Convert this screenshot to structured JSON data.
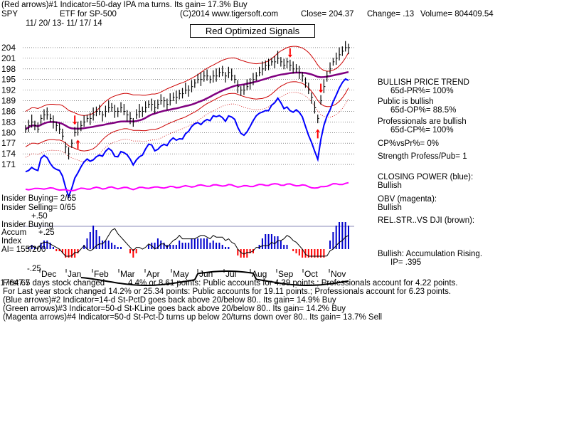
{
  "header": {
    "line1": "(Red arrows)#1 Indicator=50-day IPA ma turns. Its gain= 17.3% Buy",
    "ticker": "SPY",
    "desc": "ETF for SP-500",
    "copyright": "(C)2014 www.tigersoft.com",
    "close": "Close= 204.37",
    "change": "Change= .13",
    "volume": "Volume= 804409.54",
    "dates": "11/ 20/ 13- 11/ 17/ 14"
  },
  "title_box": "Red Optimized Signals",
  "right_panel": {
    "trend": "BULLISH PRICE TREND",
    "pr": "65d-PR%= 100%",
    "public": "Public is bullish",
    "op": "65d-OP%= 88.5%",
    "pros": "Professionals are bullish",
    "cp": "65d-CP%= 100%",
    "cpvspr": "CP%vsPr%= 0%",
    "strength": "Strength Profess/Pub= 1",
    "closing_power": "CLOSING POWER (blue):",
    "cp_bull": "Bullish",
    "obv": "OBV (magenta):",
    "obv_bull": "Bullish",
    "relstr": "REL.STR..VS DJI (brown):",
    "accum": "Bullish: Accumulation Rising.",
    "ip": "IP= .395"
  },
  "left_panel": {
    "insider_buying": "Insider Buying= 2/65",
    "insider_selling": "Insider Selling= 0/65",
    "plus50": "+.50",
    "insider_buying2": "Insider Buying",
    "accum": "Accum",
    "plus25": "+.25",
    "index": "Index",
    "ai": "AI= 155/200",
    "minus25": "-.25"
  },
  "footer": {
    "line1a": "First 65 days stock changed",
    "line1b": "17647.7",
    "line1c": "4.4% or  8.61 points:  Public accounts for  4.39 points.;  Professionals account for  4.22 points.",
    "line2": "For Last year stock changed  14.2% or  25.34 points:  Public accounts for  19.11 points.;  Professionals account for  6.23 points.",
    "line3": "(Blue arrows)#2 Indicator=14-d St-PctD goes back above 20/below 80.. Its gain= 14.9% Buy",
    "line4": "(Green arrows)#3 Indicator=50-d St-KLine goes back above 20/below 80.. Its gain= 14.2% Buy",
    "line5": "(Magenta arrows)#4 Indicator=50-d St-Pct-D turns up below 20/turns down over 80.. Its gain= 13.7% Sell"
  },
  "chart_data": {
    "type": "line",
    "y_ticks": [
      204,
      201,
      198,
      195,
      192,
      189,
      186,
      183,
      180,
      177,
      174,
      171
    ],
    "ylim": [
      168,
      206
    ],
    "x_month_labels": [
      "Dec",
      "Jan",
      "Feb",
      "Mar",
      "Apr",
      "May",
      "Jun",
      "Jul",
      "Aug",
      "Sep",
      "Oct",
      "Nov"
    ],
    "colors": {
      "price": "#000000",
      "bands": "#cc0000",
      "ma": "#800080",
      "closing_power": "#0000ff",
      "obv": "#ff00ff",
      "accum": "#0000cc",
      "arrow": "#ff0000"
    },
    "price": [
      181,
      182,
      183,
      182,
      181,
      184,
      185,
      185,
      184,
      183,
      182,
      181,
      179,
      176,
      174,
      177,
      180,
      181,
      182,
      183,
      184,
      184,
      185,
      186,
      186,
      185,
      186,
      187,
      187,
      186,
      186,
      187,
      186,
      185,
      184,
      183,
      185,
      186,
      186,
      187,
      188,
      188,
      187,
      188,
      189,
      189,
      188,
      189,
      190,
      190,
      191,
      191,
      192,
      192,
      193,
      194,
      195,
      195,
      196,
      196,
      195,
      196,
      196,
      197,
      197,
      196,
      197,
      196,
      195,
      193,
      192,
      192,
      193,
      194,
      195,
      196,
      197,
      198,
      199,
      199,
      200,
      200,
      201,
      200,
      199,
      200,
      199,
      198,
      198,
      197,
      196,
      194,
      192,
      190,
      187,
      184,
      189,
      193,
      196,
      198,
      200,
      201,
      202,
      203,
      204,
      204
    ]
  }
}
